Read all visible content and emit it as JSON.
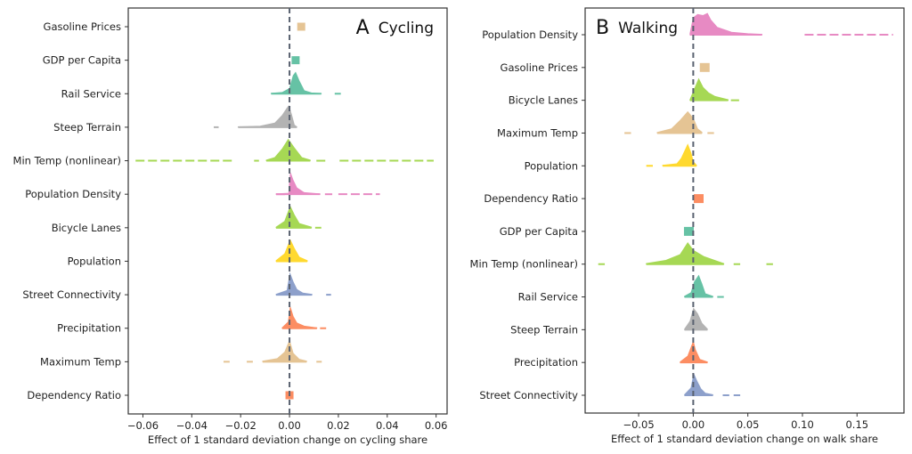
{
  "chart_data": [
    {
      "type": "ridgeline-density",
      "panel_letter": "A",
      "title": "Cycling",
      "title_position": "top-right",
      "xlabel": "Effect of 1 standard deviation change on cycling share",
      "ylabel": "",
      "xlim": [
        -0.066,
        0.0645
      ],
      "xticks": [
        -0.06,
        -0.04,
        -0.02,
        0.0,
        0.02,
        0.04,
        0.06
      ],
      "xtick_labels": [
        "−0.06",
        "−0.04",
        "−0.02",
        "0.00",
        "0.02",
        "0.04",
        "0.06"
      ],
      "reference_line": {
        "x": 0.0,
        "style": "dashed"
      },
      "categories": [
        "Gasoline Prices",
        "GDP per Capita",
        "Rail Service",
        "Steep Terrain",
        "Min Temp (nonlinear)",
        "Population Density",
        "Bicycle Lanes",
        "Population",
        "Street Connectivity",
        "Precipitation",
        "Maximum Temp",
        "Dependency Ratio"
      ],
      "series": [
        {
          "name": "Gasoline Prices",
          "color": "#e5c494",
          "kind": "point",
          "value": 0.0048
        },
        {
          "name": "GDP per Capita",
          "color": "#66c2a5",
          "kind": "point",
          "value": 0.0025
        },
        {
          "name": "Rail Service",
          "color": "#66c2a5",
          "kind": "density",
          "peak": 0.002,
          "range": [
            -0.0075,
            0.013
          ],
          "density": [
            [
              -0.0075,
              0.02
            ],
            [
              -0.003,
              0.06
            ],
            [
              0.0,
              0.25
            ],
            [
              0.0015,
              0.85
            ],
            [
              0.0025,
              1.0
            ],
            [
              0.004,
              0.6
            ],
            [
              0.006,
              0.15
            ],
            [
              0.009,
              0.04
            ],
            [
              0.013,
              0.01
            ]
          ],
          "outliers": [
            [
              0.0185,
              0.021
            ]
          ]
        },
        {
          "name": "Steep Terrain",
          "color": "#b3b3b3",
          "kind": "density",
          "peak": -0.0003,
          "range": [
            -0.021,
            0.003
          ],
          "density": [
            [
              -0.021,
              0.02
            ],
            [
              -0.012,
              0.05
            ],
            [
              -0.006,
              0.2
            ],
            [
              -0.003,
              0.55
            ],
            [
              -0.001,
              0.9
            ],
            [
              -0.0003,
              1.0
            ],
            [
              0.0008,
              0.6
            ],
            [
              0.002,
              0.1
            ],
            [
              0.003,
              0.02
            ]
          ],
          "outliers": [
            [
              -0.031,
              -0.029
            ]
          ]
        },
        {
          "name": "Min Temp (nonlinear)",
          "color": "#a6d854",
          "kind": "density",
          "peak": -0.0005,
          "range": [
            -0.0095,
            0.0085
          ],
          "density": [
            [
              -0.0095,
              0.03
            ],
            [
              -0.006,
              0.15
            ],
            [
              -0.003,
              0.55
            ],
            [
              -0.0005,
              1.0
            ],
            [
              0.002,
              0.6
            ],
            [
              0.005,
              0.15
            ],
            [
              0.0085,
              0.03
            ]
          ],
          "outliers": [
            [
              -0.063,
              -0.0225
            ],
            [
              -0.0145,
              -0.0125
            ],
            [
              0.011,
              0.015
            ],
            [
              0.0205,
              0.059
            ]
          ]
        },
        {
          "name": "Population Density",
          "color": "#e78ac3",
          "kind": "density",
          "peak": 0.0002,
          "range": [
            -0.0055,
            0.0125
          ],
          "density": [
            [
              -0.0055,
              0.02
            ],
            [
              -0.0003,
              0.05
            ],
            [
              0.0,
              0.6
            ],
            [
              0.0004,
              1.0
            ],
            [
              0.0015,
              0.65
            ],
            [
              0.003,
              0.3
            ],
            [
              0.006,
              0.08
            ],
            [
              0.0125,
              0.02
            ]
          ],
          "outliers": [
            [
              -0.0055,
              -0.0005
            ],
            [
              0.0145,
              0.0175
            ],
            [
              0.02,
              0.037
            ]
          ]
        },
        {
          "name": "Bicycle Lanes",
          "color": "#a6d854",
          "kind": "density",
          "peak": 0.0003,
          "range": [
            -0.0055,
            0.009
          ],
          "density": [
            [
              -0.0055,
              0.03
            ],
            [
              -0.002,
              0.3
            ],
            [
              0.0003,
              1.0
            ],
            [
              0.002,
              0.6
            ],
            [
              0.004,
              0.2
            ],
            [
              0.009,
              0.03
            ]
          ],
          "outliers": [
            [
              0.0105,
              0.013
            ]
          ]
        },
        {
          "name": "Population",
          "color": "#ffd92f",
          "kind": "density",
          "peak": 0.0003,
          "range": [
            -0.0055,
            0.0073
          ],
          "density": [
            [
              -0.0055,
              0.03
            ],
            [
              -0.002,
              0.35
            ],
            [
              0.0003,
              1.0
            ],
            [
              0.002,
              0.6
            ],
            [
              0.004,
              0.2
            ],
            [
              0.0073,
              0.03
            ]
          ],
          "outliers": []
        },
        {
          "name": "Street Connectivity",
          "color": "#8da0cb",
          "kind": "density",
          "peak": 0.0002,
          "range": [
            -0.0055,
            0.0092
          ],
          "density": [
            [
              -0.0055,
              0.02
            ],
            [
              -0.001,
              0.2
            ],
            [
              0.0002,
              1.0
            ],
            [
              0.0015,
              0.6
            ],
            [
              0.003,
              0.25
            ],
            [
              0.0055,
              0.08
            ],
            [
              0.0092,
              0.02
            ]
          ],
          "outliers": [
            [
              0.015,
              0.017
            ]
          ]
        },
        {
          "name": "Precipitation",
          "color": "#fc8d62",
          "kind": "density",
          "peak": 0.0003,
          "range": [
            -0.003,
            0.0112
          ],
          "density": [
            [
              -0.003,
              0.02
            ],
            [
              -0.0005,
              0.3
            ],
            [
              0.0003,
              1.0
            ],
            [
              0.0015,
              0.55
            ],
            [
              0.003,
              0.25
            ],
            [
              0.006,
              0.1
            ],
            [
              0.0112,
              0.02
            ]
          ],
          "outliers": [
            [
              0.0125,
              0.015
            ]
          ]
        },
        {
          "name": "Maximum Temp",
          "color": "#e5c494",
          "kind": "density",
          "peak": 0.0,
          "range": [
            -0.011,
            0.007
          ],
          "density": [
            [
              -0.011,
              0.03
            ],
            [
              -0.005,
              0.15
            ],
            [
              -0.002,
              0.45
            ],
            [
              0.0,
              1.0
            ],
            [
              0.0015,
              0.4
            ],
            [
              0.004,
              0.12
            ],
            [
              0.007,
              0.03
            ]
          ],
          "outliers": [
            [
              -0.027,
              -0.0245
            ],
            [
              -0.0175,
              -0.015
            ],
            [
              0.011,
              0.0132
            ]
          ]
        },
        {
          "name": "Dependency Ratio",
          "color": "#fc8d62",
          "kind": "point",
          "value": 0.0
        }
      ]
    },
    {
      "type": "ridgeline-density",
      "panel_letter": "B",
      "title": "Walking",
      "title_position": "top-left",
      "xlabel": "Effect of 1 standard deviation change on walk share",
      "ylabel": "",
      "xlim": [
        -0.099,
        0.193
      ],
      "xticks": [
        -0.05,
        0.0,
        0.05,
        0.1,
        0.15
      ],
      "xtick_labels": [
        "−0.05",
        "0.00",
        "0.05",
        "0.10",
        "0.15"
      ],
      "reference_line": {
        "x": 0.0,
        "style": "dashed"
      },
      "categories": [
        "Population Density",
        "Gasoline Prices",
        "Bicycle Lanes",
        "Maximum Temp",
        "Population",
        "Dependency Ratio",
        "GDP per Capita",
        "Min Temp (nonlinear)",
        "Rail Service",
        "Steep Terrain",
        "Precipitation",
        "Street Connectivity"
      ],
      "series": [
        {
          "name": "Population Density",
          "color": "#e78ac3",
          "kind": "density",
          "peak": 0.012,
          "range": [
            -0.003,
            0.063
          ],
          "density": [
            [
              -0.003,
              0.05
            ],
            [
              0.0,
              0.8
            ],
            [
              0.004,
              0.95
            ],
            [
              0.009,
              0.9
            ],
            [
              0.013,
              1.0
            ],
            [
              0.016,
              0.7
            ],
            [
              0.022,
              0.35
            ],
            [
              0.035,
              0.12
            ],
            [
              0.05,
              0.05
            ],
            [
              0.063,
              0.02
            ]
          ],
          "outliers": [
            [
              0.102,
              0.183
            ]
          ]
        },
        {
          "name": "Gasoline Prices",
          "color": "#e5c494",
          "kind": "point",
          "value": 0.0105
        },
        {
          "name": "Bicycle Lanes",
          "color": "#a6d854",
          "kind": "density",
          "peak": 0.005,
          "range": [
            -0.003,
            0.032
          ],
          "density": [
            [
              -0.003,
              0.03
            ],
            [
              0.0,
              0.4
            ],
            [
              0.005,
              1.0
            ],
            [
              0.009,
              0.6
            ],
            [
              0.014,
              0.35
            ],
            [
              0.02,
              0.18
            ],
            [
              0.032,
              0.03
            ]
          ],
          "outliers": [
            [
              0.0345,
              0.042
            ]
          ]
        },
        {
          "name": "Maximum Temp",
          "color": "#e5c494",
          "kind": "density",
          "peak": -0.005,
          "range": [
            -0.033,
            0.008
          ],
          "density": [
            [
              -0.033,
              0.03
            ],
            [
              -0.02,
              0.2
            ],
            [
              -0.012,
              0.6
            ],
            [
              -0.005,
              1.0
            ],
            [
              0.0,
              0.7
            ],
            [
              0.004,
              0.2
            ],
            [
              0.008,
              0.04
            ]
          ],
          "outliers": [
            [
              -0.063,
              -0.057
            ],
            [
              0.013,
              0.019
            ]
          ]
        },
        {
          "name": "Population",
          "color": "#ffd92f",
          "kind": "density",
          "peak": -0.005,
          "range": [
            -0.028,
            0.003
          ],
          "density": [
            [
              -0.028,
              0.03
            ],
            [
              -0.015,
              0.1
            ],
            [
              -0.011,
              0.35
            ],
            [
              -0.005,
              1.0
            ],
            [
              -0.002,
              0.6
            ],
            [
              0.0,
              0.2
            ],
            [
              0.003,
              0.03
            ]
          ],
          "outliers": [
            [
              -0.043,
              -0.037
            ]
          ]
        },
        {
          "name": "Dependency Ratio",
          "color": "#fc8d62",
          "kind": "point",
          "value": 0.005
        },
        {
          "name": "GDP per Capita",
          "color": "#66c2a5",
          "kind": "point",
          "value": -0.004
        },
        {
          "name": "Min Temp (nonlinear)",
          "color": "#a6d854",
          "kind": "density",
          "peak": -0.005,
          "range": [
            -0.043,
            0.028
          ],
          "density": [
            [
              -0.043,
              0.03
            ],
            [
              -0.025,
              0.18
            ],
            [
              -0.012,
              0.45
            ],
            [
              -0.005,
              1.0
            ],
            [
              0.0,
              0.65
            ],
            [
              0.01,
              0.35
            ],
            [
              0.028,
              0.03
            ]
          ],
          "outliers": [
            [
              -0.087,
              -0.081
            ],
            [
              0.037,
              0.043
            ],
            [
              0.067,
              0.073
            ]
          ]
        },
        {
          "name": "Rail Service",
          "color": "#66c2a5",
          "kind": "density",
          "peak": 0.005,
          "range": [
            -0.008,
            0.018
          ],
          "density": [
            [
              -0.008,
              0.03
            ],
            [
              -0.002,
              0.2
            ],
            [
              0.001,
              0.7
            ],
            [
              0.005,
              1.0
            ],
            [
              0.008,
              0.6
            ],
            [
              0.011,
              0.15
            ],
            [
              0.018,
              0.03
            ]
          ],
          "outliers": [
            [
              0.022,
              0.028
            ]
          ]
        },
        {
          "name": "Steep Terrain",
          "color": "#b3b3b3",
          "kind": "density",
          "peak": 0.0003,
          "range": [
            -0.008,
            0.013
          ],
          "density": [
            [
              -0.008,
              0.03
            ],
            [
              -0.003,
              0.4
            ],
            [
              0.0003,
              1.0
            ],
            [
              0.004,
              0.75
            ],
            [
              0.008,
              0.3
            ],
            [
              0.013,
              0.03
            ]
          ],
          "outliers": []
        },
        {
          "name": "Precipitation",
          "color": "#fc8d62",
          "kind": "density",
          "peak": 0.0,
          "range": [
            -0.012,
            0.013
          ],
          "density": [
            [
              -0.012,
              0.03
            ],
            [
              -0.005,
              0.3
            ],
            [
              -0.001,
              0.85
            ],
            [
              0.0,
              1.0
            ],
            [
              0.002,
              0.6
            ],
            [
              0.006,
              0.15
            ],
            [
              0.013,
              0.03
            ]
          ],
          "outliers": []
        },
        {
          "name": "Street Connectivity",
          "color": "#8da0cb",
          "kind": "density",
          "peak": 0.0005,
          "range": [
            -0.008,
            0.018
          ],
          "density": [
            [
              -0.008,
              0.03
            ],
            [
              -0.002,
              0.35
            ],
            [
              0.0005,
              1.0
            ],
            [
              0.003,
              0.7
            ],
            [
              0.007,
              0.3
            ],
            [
              0.011,
              0.1
            ],
            [
              0.018,
              0.03
            ]
          ],
          "outliers": [
            [
              0.027,
              0.033
            ],
            [
              0.037,
              0.043
            ]
          ]
        }
      ]
    }
  ]
}
